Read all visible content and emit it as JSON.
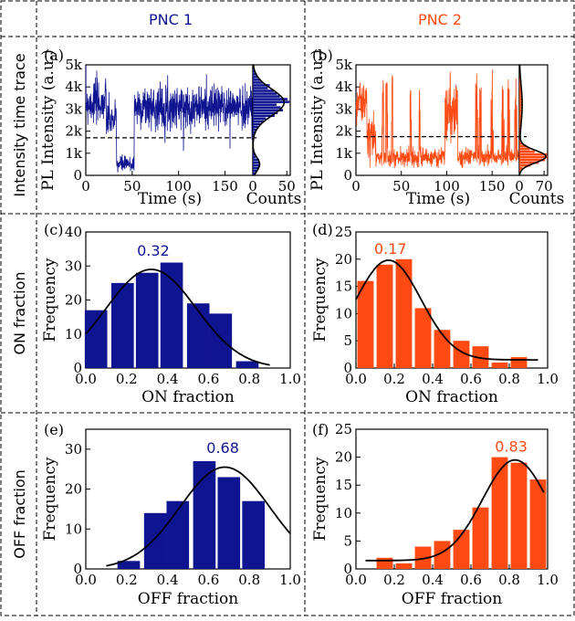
{
  "colors": {
    "pnc1": "#0f1490",
    "pnc2": "#ff4a12",
    "fit": "#000000"
  },
  "columns": [
    "PNC 1",
    "PNC 2"
  ],
  "rows": [
    "Intensity time trace",
    "ON fraction",
    "OFF fraction"
  ],
  "chart_data": [
    {
      "id": "a",
      "label": "(a)",
      "type": "line",
      "series_name": "PNC 1",
      "xlabel": "Time (s)",
      "ylabel": "PL Intensity (a.u.)",
      "xlim": [
        0,
        180
      ],
      "ylim": [
        0,
        5000
      ],
      "xticks": [
        0,
        50,
        100,
        150
      ],
      "xtick_labels": [
        "0",
        "50",
        "100",
        "150"
      ],
      "yticks": [
        0,
        1000,
        2000,
        3000,
        4000,
        5000
      ],
      "ytick_labels": [
        "0",
        "1k",
        "2k",
        "3k",
        "4k",
        "5k"
      ],
      "threshold": 1700,
      "segments": [
        {
          "t0": 0,
          "t1": 22,
          "mean": 3300,
          "spread": 900
        },
        {
          "t0": 22,
          "t1": 33,
          "mean": 2500,
          "spread": 700
        },
        {
          "t0": 33,
          "t1": 52,
          "mean": 500,
          "spread": 350
        },
        {
          "t0": 52,
          "t1": 180,
          "mean": 3100,
          "spread": 850
        }
      ],
      "histogram": {
        "xlabel": "Counts",
        "xlim": [
          0,
          55
        ],
        "xticks": [
          0,
          50
        ],
        "xtick_labels": [
          "0",
          "50"
        ],
        "counts": [
          2,
          6,
          8,
          10,
          9,
          12,
          11,
          14,
          12,
          10,
          14,
          9,
          7,
          3,
          4,
          8,
          12,
          17,
          22,
          28,
          33,
          38,
          42,
          45,
          47,
          42,
          36,
          26,
          16,
          9,
          5,
          3,
          2,
          1
        ],
        "bin_edges": [
          0,
          5000
        ],
        "fit_bimodal": [
          {
            "mu": 500,
            "sigma": 300,
            "amp": 10
          },
          {
            "mu": 3300,
            "sigma": 600,
            "amp": 46
          }
        ]
      }
    },
    {
      "id": "b",
      "label": "(b)",
      "type": "line",
      "series_name": "PNC 2",
      "xlabel": "Time (s)",
      "ylabel": "PL Intensity (a.u.)",
      "xlim": [
        0,
        180
      ],
      "ylim": [
        0,
        5000
      ],
      "xticks": [
        0,
        50,
        100,
        150
      ],
      "xtick_labels": [
        "0",
        "50",
        "100",
        "150"
      ],
      "yticks": [
        0,
        1000,
        2000,
        3000,
        4000,
        5000
      ],
      "ytick_labels": [
        "0",
        "1k",
        "2k",
        "3k",
        "4k",
        "5k"
      ],
      "threshold": 1750,
      "segments": [
        {
          "t0": 0,
          "t1": 12,
          "mean": 3300,
          "spread": 900
        },
        {
          "t0": 12,
          "t1": 22,
          "mean": 1700,
          "spread": 1000
        },
        {
          "t0": 22,
          "t1": 98,
          "mean": 800,
          "spread": 350
        },
        {
          "t0": 98,
          "t1": 112,
          "mean": 2800,
          "spread": 1100
        },
        {
          "t0": 112,
          "t1": 180,
          "mean": 850,
          "spread": 350
        }
      ],
      "spikes": [
        30,
        34,
        40,
        60,
        70,
        104,
        108,
        133,
        137,
        150,
        162,
        168,
        176
      ],
      "histogram": {
        "xlabel": "Counts",
        "xlim": [
          0,
          80
        ],
        "xticks": [
          0,
          70
        ],
        "xtick_labels": [
          "0",
          "70"
        ],
        "fit_bimodal": [
          {
            "mu": 850,
            "sigma": 280,
            "amp": 75
          },
          {
            "mu": 3200,
            "sigma": 900,
            "amp": 8
          }
        ]
      }
    },
    {
      "id": "c",
      "label": "(c)",
      "type": "bar",
      "series_name": "PNC 1",
      "xlabel": "ON fraction",
      "ylabel": "Frequency",
      "xlim": [
        0,
        1
      ],
      "ylim": [
        0,
        40
      ],
      "xticks": [
        0,
        0.2,
        0.4,
        0.6,
        0.8,
        1.0
      ],
      "xtick_labels": [
        "0.0",
        "0.2",
        "0.4",
        "0.6",
        "0.8",
        "1.0"
      ],
      "yticks": [
        0,
        10,
        20,
        30,
        40
      ],
      "ytick_labels": [
        "0",
        "10",
        "20",
        "30",
        "40"
      ],
      "bin_centers": [
        0.05,
        0.15,
        0.25,
        0.35,
        0.45,
        0.55,
        0.65,
        0.75,
        0.85,
        0.95
      ],
      "values": [
        17,
        25,
        28,
        31,
        19,
        16,
        2,
        0,
        0,
        0
      ],
      "bar_centers": [
        0.05,
        0.18,
        0.3,
        0.42,
        0.55,
        0.66,
        0.79
      ],
      "bar_values": [
        17,
        25,
        28,
        31,
        19,
        16,
        2
      ],
      "bar_width": 0.11,
      "fit": {
        "mu": 0.32,
        "sigma": 0.22,
        "amp": 29,
        "x0": 0.0,
        "x1": 0.9
      },
      "annotation": "0.32",
      "annotation_x": 0.33,
      "annotation_y": 33
    },
    {
      "id": "d",
      "label": "(d)",
      "type": "bar",
      "series_name": "PNC 2",
      "xlabel": "ON fraction",
      "ylabel": "Frequency",
      "xlim": [
        0,
        1
      ],
      "ylim": [
        0,
        25
      ],
      "xticks": [
        0,
        0.2,
        0.4,
        0.6,
        0.8,
        1.0
      ],
      "xtick_labels": [
        "0.0",
        "0.2",
        "0.4",
        "0.6",
        "0.8",
        "1.0"
      ],
      "yticks": [
        0,
        5,
        10,
        15,
        20,
        25
      ],
      "ytick_labels": [
        "0",
        "5",
        "10",
        "15",
        "20",
        "25"
      ],
      "bar_centers": [
        0.05,
        0.15,
        0.25,
        0.35,
        0.45,
        0.55,
        0.65,
        0.75,
        0.85
      ],
      "bar_values": [
        16,
        19,
        20,
        11,
        7,
        5,
        4,
        1,
        2
      ],
      "bar_width": 0.085,
      "fit": {
        "mu": 0.17,
        "sigma": 0.17,
        "amp": 18.3,
        "base": 1.5,
        "x0": 0.0,
        "x1": 0.95
      },
      "annotation": "0.17",
      "annotation_x": 0.18,
      "annotation_y": 21
    },
    {
      "id": "e",
      "label": "(e)",
      "type": "bar",
      "series_name": "PNC 1",
      "xlabel": "OFF fraction",
      "ylabel": "Frequency",
      "xlim": [
        0,
        1
      ],
      "ylim": [
        0,
        35
      ],
      "xticks": [
        0,
        0.2,
        0.4,
        0.6,
        0.8,
        1.0
      ],
      "xtick_labels": [
        "0.0",
        "0.2",
        "0.4",
        "0.6",
        "0.8",
        "1.0"
      ],
      "yticks": [
        0,
        10,
        20,
        30
      ],
      "ytick_labels": [
        "0",
        "10",
        "20",
        "30"
      ],
      "bar_centers": [
        0.21,
        0.34,
        0.45,
        0.58,
        0.7,
        0.82,
        0.95
      ],
      "bar_values": [
        2,
        14,
        17,
        27,
        23,
        17,
        0
      ],
      "bar_centers_drawn": [
        0.21,
        0.34,
        0.45,
        0.58,
        0.7,
        0.82
      ],
      "bar_values_drawn": [
        2,
        14,
        17,
        27,
        23,
        17
      ],
      "bar_width": 0.11,
      "fit": {
        "mu": 0.68,
        "sigma": 0.22,
        "amp": 25.5,
        "x0": 0.1,
        "x1": 1.0
      },
      "annotation": "0.68",
      "annotation_x": 0.67,
      "annotation_y": 29
    },
    {
      "id": "f",
      "label": "(f)",
      "type": "bar",
      "series_name": "PNC 2",
      "xlabel": "OFF fraction",
      "ylabel": "Frequency",
      "xlim": [
        0,
        1
      ],
      "ylim": [
        0,
        25
      ],
      "xticks": [
        0,
        0.2,
        0.4,
        0.6,
        0.8,
        1.0
      ],
      "xtick_labels": [
        "0.0",
        "0.2",
        "0.4",
        "0.6",
        "0.8",
        "1.0"
      ],
      "yticks": [
        0,
        5,
        10,
        15,
        20,
        25
      ],
      "ytick_labels": [
        "0",
        "5",
        "10",
        "15",
        "20",
        "25"
      ],
      "bar_centers_drawn": [
        0.15,
        0.25,
        0.35,
        0.45,
        0.55,
        0.65,
        0.75,
        0.85,
        0.95
      ],
      "bar_values_drawn": [
        2,
        1,
        4,
        5,
        7,
        11,
        20,
        19,
        16
      ],
      "bar_width": 0.085,
      "fit": {
        "mu": 0.83,
        "sigma": 0.17,
        "amp": 18,
        "base": 1.5,
        "x0": 0.05,
        "x1": 0.98
      },
      "annotation": "0.83",
      "annotation_x": 0.81,
      "annotation_y": 21
    }
  ]
}
